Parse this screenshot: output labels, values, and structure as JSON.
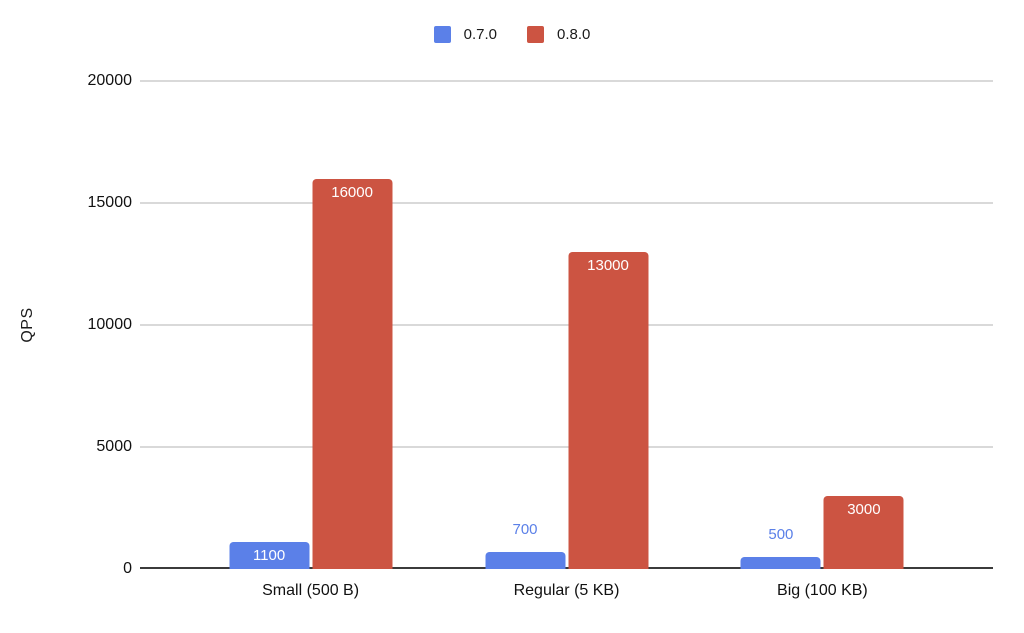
{
  "chart_data": {
    "type": "bar",
    "title": "",
    "categories": [
      "Small (500 B)",
      "Regular (5 KB)",
      "Big (100 KB)"
    ],
    "series": [
      {
        "name": "0.7.0",
        "color": "#5b80e8",
        "values": [
          1100,
          700,
          500
        ]
      },
      {
        "name": "0.8.0",
        "color": "#cc5442",
        "values": [
          16000,
          13000,
          3000
        ]
      }
    ],
    "xlabel": "",
    "ylabel": "QPS",
    "ylim": [
      0,
      20000
    ],
    "yticks": [
      0,
      5000,
      10000,
      15000,
      20000
    ],
    "grid": true,
    "legend_position": "top",
    "colors": {
      "gridline": "#d9d9d9",
      "axis_line": "#3b3b3b",
      "tick_text": "#111111",
      "inside_label_text": "#ffffff"
    }
  }
}
